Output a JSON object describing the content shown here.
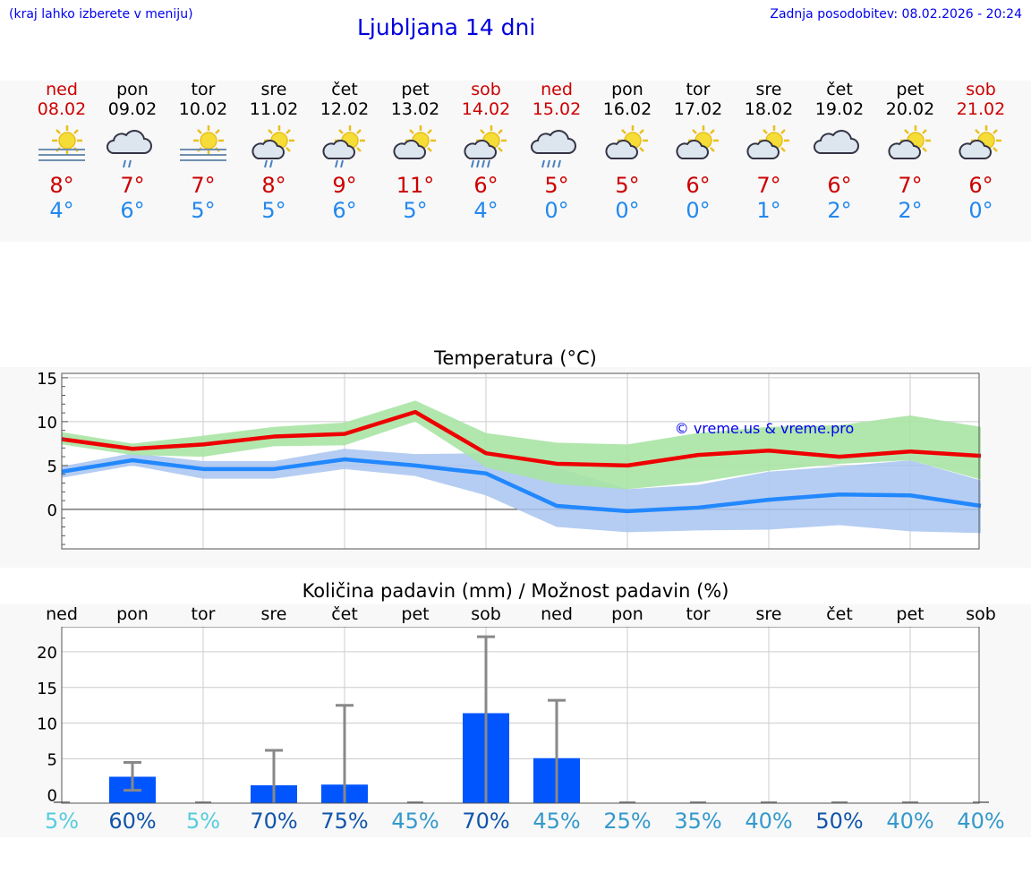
{
  "header": {
    "hint": "(kraj lahko izberete v meniju)",
    "title": "Ljubljana 14 dni",
    "updated": "Zadnja posodobitev: 08.02.2026 - 20:24"
  },
  "days": [
    {
      "name": "ned",
      "date": "08.02",
      "icon": "sun-fog-icon",
      "hi": "8°",
      "lo": "4°",
      "weekend": true
    },
    {
      "name": "pon",
      "date": "09.02",
      "icon": "cloud-rain-icon",
      "hi": "7°",
      "lo": "6°",
      "weekend": false
    },
    {
      "name": "tor",
      "date": "10.02",
      "icon": "sun-fog-icon",
      "hi": "7°",
      "lo": "5°",
      "weekend": false
    },
    {
      "name": "sre",
      "date": "11.02",
      "icon": "sun-cloud-rain-icon",
      "hi": "8°",
      "lo": "5°",
      "weekend": false
    },
    {
      "name": "čet",
      "date": "12.02",
      "icon": "sun-cloud-rain-icon",
      "hi": "9°",
      "lo": "6°",
      "weekend": false
    },
    {
      "name": "pet",
      "date": "13.02",
      "icon": "sun-cloud-icon",
      "hi": "11°",
      "lo": "5°",
      "weekend": false
    },
    {
      "name": "sob",
      "date": "14.02",
      "icon": "sun-cloud-heavy-rain-icon",
      "hi": "6°",
      "lo": "4°",
      "weekend": true
    },
    {
      "name": "ned",
      "date": "15.02",
      "icon": "cloud-heavy-rain-icon",
      "hi": "5°",
      "lo": "0°",
      "weekend": true
    },
    {
      "name": "pon",
      "date": "16.02",
      "icon": "sun-cloud-icon",
      "hi": "5°",
      "lo": "0°",
      "weekend": false
    },
    {
      "name": "tor",
      "date": "17.02",
      "icon": "sun-cloud-icon",
      "hi": "6°",
      "lo": "0°",
      "weekend": false
    },
    {
      "name": "sre",
      "date": "18.02",
      "icon": "sun-cloud-icon",
      "hi": "7°",
      "lo": "1°",
      "weekend": false
    },
    {
      "name": "čet",
      "date": "19.02",
      "icon": "cloud-icon",
      "hi": "6°",
      "lo": "2°",
      "weekend": false
    },
    {
      "name": "pet",
      "date": "20.02",
      "icon": "sun-cloud-icon",
      "hi": "7°",
      "lo": "2°",
      "weekend": false
    },
    {
      "name": "sob",
      "date": "21.02",
      "icon": "sun-cloud-icon",
      "hi": "6°",
      "lo": "0°",
      "weekend": true
    }
  ],
  "colors": {
    "max_line": "#ee0000",
    "max_band": "#a8e4a4",
    "min_line": "#2288ff",
    "min_band": "#a8c4f0",
    "bar": "#0055ff",
    "errbar": "#888888",
    "prob_low": "#55ccdd",
    "prob_mid": "#3399cc",
    "prob_high": "#1155aa"
  },
  "chart_data": [
    {
      "type": "line",
      "title": "Temperatura (°C)",
      "watermark": "© vreme.us & vreme.pro",
      "categories": [
        "ned",
        "pon",
        "tor",
        "sre",
        "čet",
        "pet",
        "sob",
        "ned",
        "pon",
        "tor",
        "sre",
        "čet",
        "pet",
        "sob"
      ],
      "ylim": [
        -4.5,
        15.5
      ],
      "yticks": [
        0,
        5,
        10,
        15
      ],
      "series": [
        {
          "name": "max",
          "values": [
            8.0,
            6.9,
            7.4,
            8.3,
            8.6,
            11.1,
            6.4,
            5.2,
            5.0,
            6.2,
            6.7,
            6.0,
            6.6,
            6.1
          ],
          "band_low": [
            7.4,
            6.2,
            6.0,
            7.2,
            7.3,
            10.0,
            4.8,
            2.9,
            2.3,
            3.1,
            4.4,
            5.2,
            5.6,
            3.4
          ],
          "band_high": [
            8.8,
            7.5,
            8.4,
            9.4,
            9.9,
            12.4,
            8.7,
            7.6,
            7.4,
            8.7,
            9.4,
            9.6,
            10.7,
            9.4
          ]
        },
        {
          "name": "min",
          "values": [
            4.3,
            5.6,
            4.6,
            4.6,
            5.7,
            5.0,
            4.1,
            0.4,
            -0.2,
            0.2,
            1.1,
            1.7,
            1.6,
            0.4
          ],
          "band_low": [
            3.6,
            5.0,
            3.5,
            3.5,
            4.6,
            3.8,
            1.6,
            -2.0,
            -2.6,
            -2.4,
            -2.3,
            -1.8,
            -2.5,
            -2.7
          ],
          "band_high": [
            4.9,
            6.4,
            5.5,
            5.5,
            6.9,
            6.3,
            6.4,
            4.8,
            2.3,
            2.8,
            4.3,
            4.9,
            5.6,
            3.3
          ]
        }
      ]
    },
    {
      "type": "bar",
      "title": "Količina padavin (mm) / Možnost padavin (%)",
      "categories": [
        "ned",
        "pon",
        "tor",
        "sre",
        "čet",
        "pet",
        "sob",
        "ned",
        "pon",
        "tor",
        "sre",
        "čet",
        "pet",
        "sob"
      ],
      "ylim": [
        -1.2,
        23.5
      ],
      "yticks": [
        0,
        5,
        10,
        15,
        20
      ],
      "values": [
        0,
        2.5,
        0,
        1.3,
        1.4,
        0,
        11.4,
        5.1,
        0,
        0,
        0,
        0,
        0,
        0
      ],
      "err_low": [
        0,
        0.6,
        0,
        0,
        0,
        0,
        0,
        0,
        0,
        0,
        0,
        0,
        0,
        0
      ],
      "err_high": [
        0,
        4.5,
        0,
        6.2,
        12.5,
        0,
        22.1,
        13.2,
        0,
        0,
        0,
        0,
        0,
        0
      ],
      "probability": [
        "5%",
        "60%",
        "5%",
        "70%",
        "75%",
        "45%",
        "70%",
        "45%",
        "25%",
        "35%",
        "40%",
        "50%",
        "40%",
        "40%"
      ],
      "probability_values": [
        5,
        60,
        5,
        70,
        75,
        45,
        70,
        45,
        25,
        35,
        40,
        50,
        40,
        40
      ]
    }
  ]
}
